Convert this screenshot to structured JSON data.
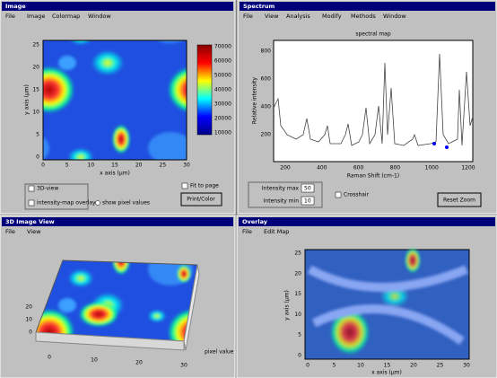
{
  "windows": [
    {
      "title": "Image",
      "menu": [
        "File",
        "Image",
        "Colormap",
        "Window"
      ],
      "xlabel": "x axis (µm)",
      "ylabel": "y axis (µm)",
      "xticks": [
        "0",
        "5",
        "10",
        "15",
        "20",
        "25",
        "30"
      ],
      "yticks": [
        "25",
        "20",
        "15",
        "10",
        "5",
        "0"
      ],
      "colorbar": [
        "70000",
        "60000",
        "50000",
        "40000",
        "30000",
        "20000",
        "10000"
      ],
      "checks": [
        "3D-view",
        "intensity-map overlay"
      ],
      "radio": "show pixel values",
      "check2": "Fit to page",
      "button": "Print/Color"
    },
    {
      "title": "Spectrum",
      "menu": [
        "File",
        "View",
        "Analysis",
        "Modify",
        "Methods",
        "Window"
      ],
      "plot_title": "spectral map",
      "xlabel": "Raman Shift (cm-1)",
      "ylabel": "Relative intensity",
      "xticks": [
        "200",
        "400",
        "600",
        "800",
        "1000",
        "1200"
      ],
      "yticks": [
        "800",
        "600",
        "400",
        "200"
      ],
      "fields": [
        "Intensity max",
        "Intensity min"
      ],
      "field_values": [
        "50",
        "10"
      ],
      "crosshair": "Crosshair",
      "button": "Reset Zoom"
    },
    {
      "title": "3D Image View",
      "menu": [
        "File",
        "View"
      ],
      "xticks": [
        "0",
        "10",
        "20",
        "30"
      ],
      "yticks": [
        "0",
        "10",
        "20"
      ],
      "zlabel": "pixel value"
    },
    {
      "title": "Overlay",
      "menu": [
        "File",
        "Edit Map"
      ],
      "ylabel": "y axis (µm)",
      "xlabel": "x axis (µm)",
      "xticks": [
        "0",
        "5",
        "10",
        "15",
        "20",
        "25",
        "30"
      ],
      "yticks": [
        "25",
        "20",
        "15",
        "10",
        "5",
        "0"
      ]
    }
  ]
}
